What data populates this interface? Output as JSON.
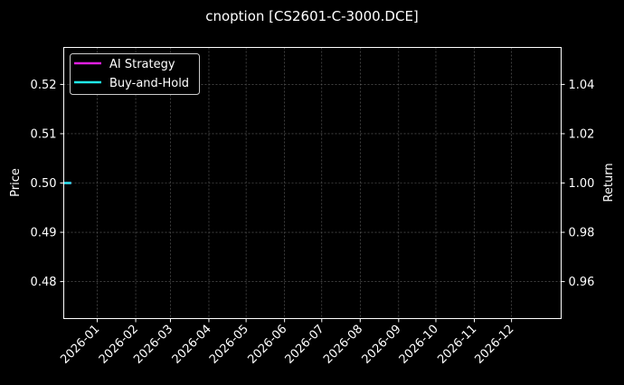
{
  "chart_data": {
    "type": "line",
    "title": "cnoption [CS2601-C-3000.DCE]",
    "ylabel": "Price",
    "y2label": "Return",
    "ylim": [
      0.4725,
      0.5275
    ],
    "y2lim": [
      0.945,
      1.055
    ],
    "xlim": [
      "2025-12-05",
      "2027-01-10"
    ],
    "yticks": [
      "0.48",
      "0.49",
      "0.50",
      "0.51",
      "0.52"
    ],
    "y2ticks": [
      "0.96",
      "0.98",
      "1.00",
      "1.02",
      "1.04"
    ],
    "xticks": [
      "2026-01",
      "2026-02",
      "2026-03",
      "2026-04",
      "2026-05",
      "2026-06",
      "2026-07",
      "2026-08",
      "2026-09",
      "2026-10",
      "2026-11",
      "2026-12"
    ],
    "grid": true,
    "legend_position": "top-left",
    "background": "#000000",
    "series": [
      {
        "name": "AI Strategy",
        "color": "#e020e0",
        "axis": "right",
        "x": [
          "2025-12-05",
          "2025-12-11"
        ],
        "y": [
          1.0,
          1.0
        ]
      },
      {
        "name": "Buy-and-Hold",
        "color": "#20e8e8",
        "axis": "right",
        "x": [
          "2025-12-05",
          "2025-12-11"
        ],
        "y": [
          1.0,
          1.0
        ]
      }
    ]
  }
}
